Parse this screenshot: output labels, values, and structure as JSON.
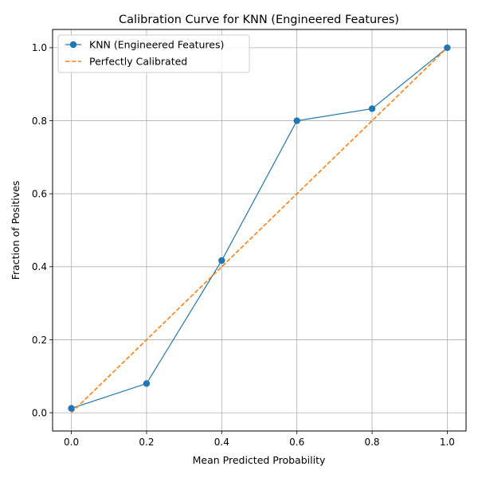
{
  "chart_data": {
    "type": "line",
    "title": "Calibration Curve for KNN (Engineered Features)",
    "xlabel": "Mean Predicted Probability",
    "ylabel": "Fraction of Positives",
    "xlim": [
      -0.05,
      1.05
    ],
    "ylim": [
      -0.05,
      1.05
    ],
    "xticks": [
      "0.0",
      "0.2",
      "0.4",
      "0.6",
      "0.8",
      "1.0"
    ],
    "yticks": [
      "0.0",
      "0.2",
      "0.4",
      "0.6",
      "0.8",
      "1.0"
    ],
    "grid": true,
    "legend_position": "top-left",
    "series": [
      {
        "name": "KNN (Engineered Features)",
        "style": "solid-with-markers",
        "color": "#1f77b4",
        "x": [
          0.0,
          0.2,
          0.4,
          0.6,
          0.8,
          1.0
        ],
        "y": [
          0.012,
          0.08,
          0.417,
          0.8,
          0.833,
          1.0
        ]
      },
      {
        "name": "Perfectly Calibrated",
        "style": "dashed",
        "color": "#ff7f0e",
        "x": [
          0.0,
          1.0
        ],
        "y": [
          0.0,
          1.0
        ]
      }
    ]
  }
}
